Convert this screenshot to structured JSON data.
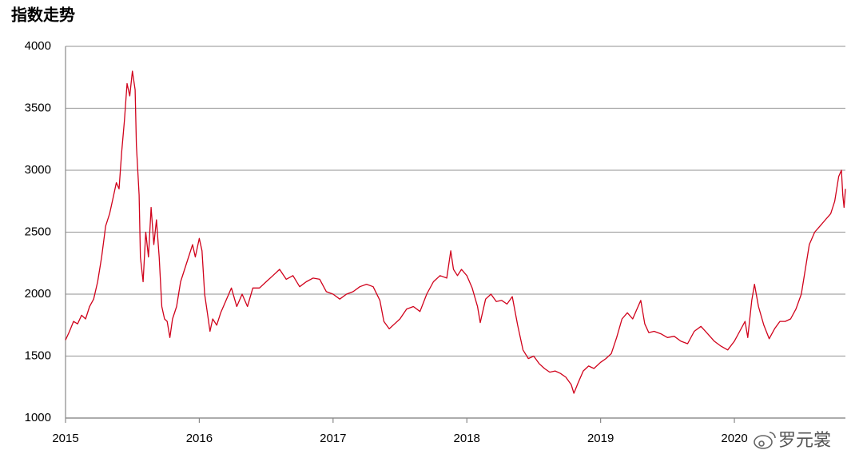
{
  "chart_data": {
    "type": "line",
    "title": "指数走势",
    "watermark": "罗元裳",
    "color": "#d0021b",
    "grid": true,
    "xlim": [
      2015,
      2020.83
    ],
    "xticks": [
      2015,
      2016,
      2017,
      2018,
      2019,
      2020
    ],
    "ylim": [
      1000,
      4000
    ],
    "yticks": [
      1000,
      1500,
      2000,
      2500,
      3000,
      3500,
      4000
    ],
    "x": [
      2015.0,
      2015.03,
      2015.06,
      2015.09,
      2015.12,
      2015.15,
      2015.18,
      2015.21,
      2015.24,
      2015.27,
      2015.3,
      2015.33,
      2015.36,
      2015.38,
      2015.4,
      2015.42,
      2015.44,
      2015.46,
      2015.48,
      2015.5,
      2015.52,
      2015.53,
      2015.55,
      2015.56,
      2015.58,
      2015.6,
      2015.62,
      2015.64,
      2015.66,
      2015.68,
      2015.7,
      2015.72,
      2015.74,
      2015.76,
      2015.78,
      2015.8,
      2015.83,
      2015.86,
      2015.89,
      2015.92,
      2015.95,
      2015.97,
      2016.0,
      2016.02,
      2016.04,
      2016.06,
      2016.08,
      2016.1,
      2016.13,
      2016.16,
      2016.2,
      2016.24,
      2016.28,
      2016.32,
      2016.36,
      2016.4,
      2016.45,
      2016.5,
      2016.55,
      2016.6,
      2016.65,
      2016.7,
      2016.75,
      2016.8,
      2016.85,
      2016.9,
      2016.95,
      2017.0,
      2017.05,
      2017.1,
      2017.15,
      2017.2,
      2017.25,
      2017.3,
      2017.35,
      2017.38,
      2017.42,
      2017.46,
      2017.5,
      2017.55,
      2017.6,
      2017.65,
      2017.7,
      2017.75,
      2017.8,
      2017.85,
      2017.88,
      2017.9,
      2017.93,
      2017.96,
      2018.0,
      2018.04,
      2018.08,
      2018.1,
      2018.14,
      2018.18,
      2018.22,
      2018.26,
      2018.3,
      2018.34,
      2018.38,
      2018.42,
      2018.46,
      2018.5,
      2018.54,
      2018.58,
      2018.62,
      2018.66,
      2018.7,
      2018.74,
      2018.78,
      2018.8,
      2018.83,
      2018.87,
      2018.91,
      2018.95,
      2019.0,
      2019.04,
      2019.08,
      2019.12,
      2019.16,
      2019.2,
      2019.24,
      2019.28,
      2019.3,
      2019.33,
      2019.36,
      2019.4,
      2019.45,
      2019.5,
      2019.55,
      2019.6,
      2019.65,
      2019.7,
      2019.75,
      2019.8,
      2019.85,
      2019.9,
      2019.95,
      2020.0,
      2020.04,
      2020.08,
      2020.1,
      2020.13,
      2020.15,
      2020.18,
      2020.22,
      2020.26,
      2020.3,
      2020.34,
      2020.38,
      2020.42,
      2020.46,
      2020.5,
      2020.53,
      2020.56,
      2020.6,
      2020.64,
      2020.68,
      2020.72,
      2020.75,
      2020.78,
      2020.8,
      2020.81,
      2020.82,
      2020.83
    ],
    "values": [
      1630,
      1700,
      1780,
      1760,
      1830,
      1800,
      1900,
      1960,
      2100,
      2300,
      2550,
      2650,
      2800,
      2900,
      2850,
      3150,
      3400,
      3700,
      3600,
      3800,
      3650,
      3200,
      2800,
      2300,
      2100,
      2500,
      2300,
      2700,
      2400,
      2600,
      2300,
      1900,
      1800,
      1780,
      1650,
      1800,
      1900,
      2100,
      2200,
      2300,
      2400,
      2300,
      2450,
      2350,
      2000,
      1850,
      1700,
      1800,
      1750,
      1850,
      1950,
      2050,
      1900,
      2000,
      1900,
      2050,
      2050,
      2100,
      2150,
      2200,
      2120,
      2150,
      2060,
      2100,
      2130,
      2120,
      2020,
      2000,
      1960,
      2000,
      2020,
      2060,
      2080,
      2060,
      1950,
      1780,
      1720,
      1760,
      1800,
      1880,
      1900,
      1860,
      2000,
      2100,
      2150,
      2130,
      2350,
      2200,
      2150,
      2200,
      2150,
      2050,
      1900,
      1770,
      1960,
      2000,
      1940,
      1950,
      1920,
      1980,
      1750,
      1550,
      1480,
      1500,
      1440,
      1400,
      1370,
      1380,
      1360,
      1330,
      1270,
      1200,
      1280,
      1380,
      1420,
      1400,
      1450,
      1480,
      1520,
      1650,
      1800,
      1850,
      1800,
      1900,
      1950,
      1760,
      1690,
      1700,
      1680,
      1650,
      1660,
      1620,
      1600,
      1700,
      1740,
      1680,
      1620,
      1580,
      1550,
      1620,
      1700,
      1780,
      1650,
      1950,
      2080,
      1900,
      1750,
      1640,
      1720,
      1780,
      1780,
      1800,
      1880,
      2000,
      2200,
      2400,
      2500,
      2550,
      2600,
      2650,
      2750,
      2950,
      3000,
      2800,
      2700,
      2850
    ]
  }
}
